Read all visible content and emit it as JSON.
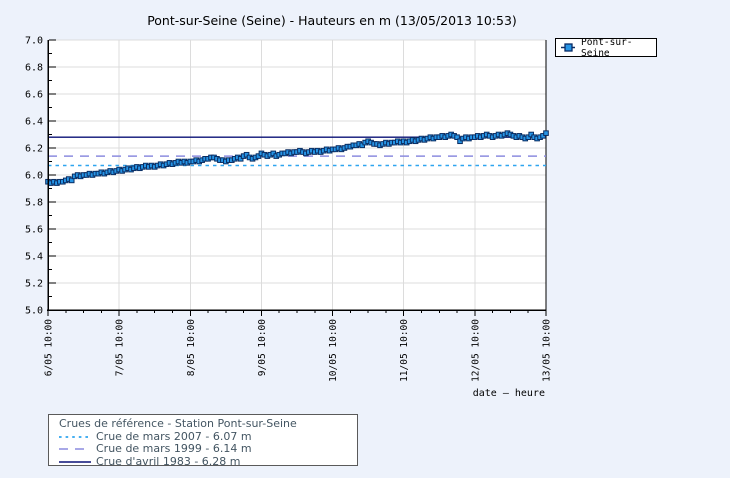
{
  "page": {
    "background": "#edf2fb"
  },
  "title": "Pont-sur-Seine (Seine) - Hauteurs en m (13/05/2013 10:53)",
  "series_legend": {
    "label": "Pont-sur-Seine"
  },
  "reference_legend": {
    "header": "Crues de référence - Station Pont-sur-Seine",
    "items": [
      {
        "label": "Crue de mars 2007 - 6.07 m"
      },
      {
        "label": "Crue de mars 1999 - 6.14 m"
      },
      {
        "label": "Crue d'avril 1983 - 6.28 m"
      }
    ]
  },
  "colors": {
    "page_background": "#edf2fb",
    "plot_background": "#ffffff",
    "grid": "#dcdcdc",
    "axis": "#000000",
    "marker_fill": "#2795e6",
    "marker_stroke": "#082b66",
    "series_line": "#0a2d62",
    "ref_2007": "#2fa5ef",
    "ref_1999": "#8c8cdf",
    "ref_1983": "#0a1076",
    "legend_text": "#435562"
  },
  "chart_data": {
    "type": "line",
    "title": "Pont-sur-Seine (Seine) - Hauteurs en m (13/05/2013 10:53)",
    "xlabel": "date – heure",
    "ylabel": "",
    "ylim": [
      5.0,
      7.0
    ],
    "y_tick_step": 0.2,
    "grid": true,
    "legend_position": "top-right",
    "y_tick_labels": [
      "7.0",
      "6.8",
      "6.6",
      "6.4",
      "6.2",
      "6.0",
      "5.8",
      "5.6",
      "5.4",
      "5.2",
      "5.0"
    ],
    "x_tick_labels": [
      "6/05 10:00",
      "7/05 10:00",
      "8/05 10:00",
      "9/05 10:00",
      "10/05 10:00",
      "11/05 10:00",
      "12/05 10:00",
      "13/05 10:00"
    ],
    "x_minor_tick_hours": 6,
    "x_start": "06/05/2013 10:00",
    "x_step_hours": 1,
    "reference_lines": [
      {
        "name": "Crue de mars 2007",
        "value": 6.07,
        "style": "dotted",
        "color": "#2fa5ef"
      },
      {
        "name": "Crue de mars 1999",
        "value": 6.14,
        "style": "dashed",
        "color": "#8c8cdf"
      },
      {
        "name": "Crue d'avril 1983",
        "value": 6.28,
        "style": "solid",
        "color": "#0a1076"
      }
    ],
    "series": [
      {
        "name": "Pont-sur-Seine",
        "marker": "square",
        "marker_color": "#2795e6",
        "line_color": "#0a2d62",
        "values": [
          5.95,
          5.94,
          5.95,
          5.94,
          5.95,
          5.95,
          5.96,
          5.97,
          5.96,
          5.99,
          6.0,
          5.99,
          6.0,
          6.0,
          6.01,
          6.0,
          6.01,
          6.01,
          6.02,
          6.01,
          6.02,
          6.03,
          6.02,
          6.03,
          6.04,
          6.03,
          6.04,
          6.05,
          6.04,
          6.05,
          6.06,
          6.05,
          6.06,
          6.07,
          6.06,
          6.07,
          6.06,
          6.07,
          6.08,
          6.07,
          6.08,
          6.09,
          6.08,
          6.09,
          6.1,
          6.09,
          6.1,
          6.09,
          6.1,
          6.1,
          6.11,
          6.1,
          6.11,
          6.12,
          6.12,
          6.13,
          6.13,
          6.12,
          6.11,
          6.11,
          6.1,
          6.11,
          6.11,
          6.12,
          6.13,
          6.12,
          6.14,
          6.15,
          6.13,
          6.12,
          6.13,
          6.14,
          6.16,
          6.15,
          6.14,
          6.15,
          6.16,
          6.14,
          6.15,
          6.16,
          6.16,
          6.17,
          6.16,
          6.17,
          6.17,
          6.18,
          6.17,
          6.16,
          6.17,
          6.18,
          6.17,
          6.18,
          6.17,
          6.18,
          6.19,
          6.18,
          6.19,
          6.19,
          6.2,
          6.19,
          6.2,
          6.21,
          6.21,
          6.22,
          6.22,
          6.23,
          6.22,
          6.24,
          6.25,
          6.24,
          6.23,
          6.23,
          6.22,
          6.23,
          6.24,
          6.23,
          6.24,
          6.24,
          6.25,
          6.24,
          6.25,
          6.24,
          6.25,
          6.26,
          6.25,
          6.26,
          6.27,
          6.26,
          6.27,
          6.28,
          6.27,
          6.28,
          6.28,
          6.29,
          6.28,
          6.29,
          6.3,
          6.29,
          6.28,
          6.25,
          6.27,
          6.28,
          6.27,
          6.28,
          6.28,
          6.29,
          6.28,
          6.29,
          6.3,
          6.29,
          6.28,
          6.29,
          6.3,
          6.29,
          6.3,
          6.31,
          6.3,
          6.29,
          6.28,
          6.29,
          6.28,
          6.27,
          6.28,
          6.3,
          6.28,
          6.27,
          6.28,
          6.29,
          6.31
        ]
      }
    ]
  }
}
